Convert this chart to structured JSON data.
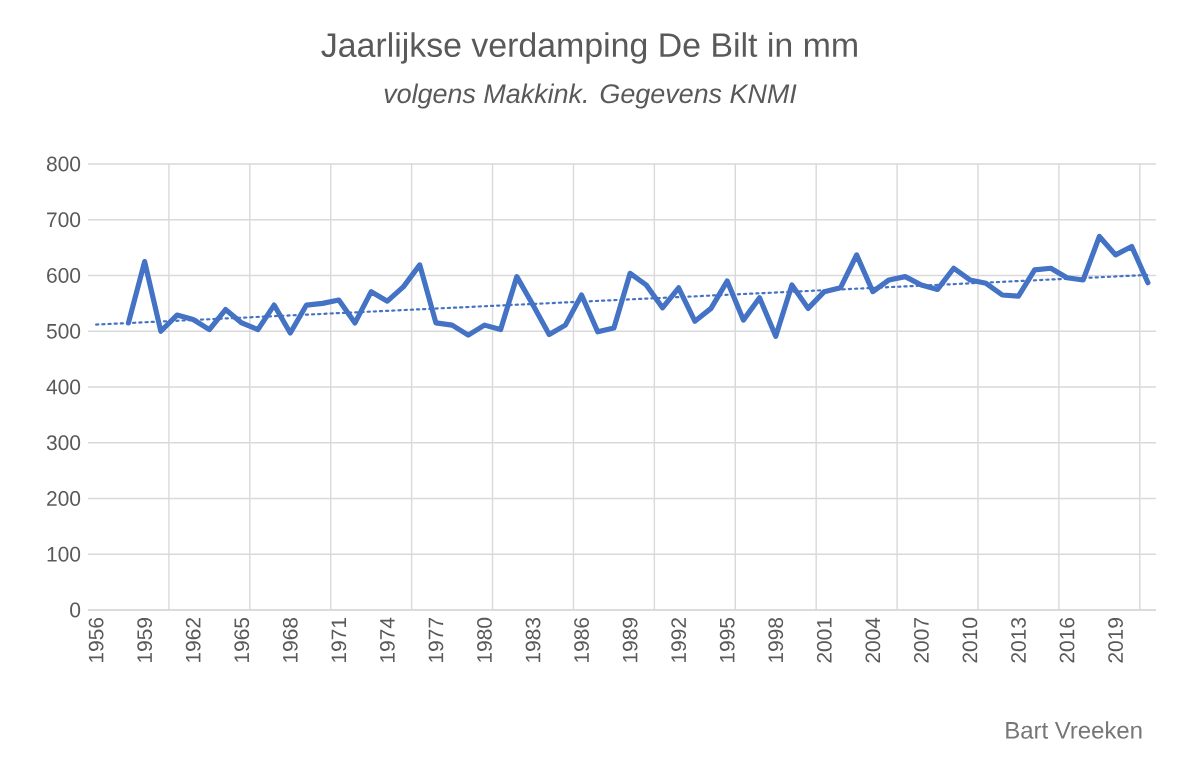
{
  "chart_data": {
    "type": "line",
    "title": "Jaarlijkse verdamping De Bilt in mm",
    "subtitle": "volgens Makkink. Gegevens KNMI",
    "xlim": [
      1955.5,
      2021.5
    ],
    "ylim": [
      0,
      800
    ],
    "xticks": [
      1956,
      1959,
      1962,
      1965,
      1968,
      1971,
      1974,
      1977,
      1980,
      1983,
      1986,
      1989,
      1992,
      1995,
      1998,
      2001,
      2004,
      2007,
      2010,
      2013,
      2016,
      2019,
      {
        "value": 1960.5,
        "label": null
      },
      {
        "value": 1965.5,
        "label": null
      },
      {
        "value": 1970.5,
        "label": null
      },
      {
        "value": 1975.5,
        "label": null
      },
      {
        "value": 1980.5,
        "label": null
      },
      {
        "value": 1985.5,
        "label": null
      },
      {
        "value": 1990.5,
        "label": null
      },
      {
        "value": 1995.5,
        "label": null
      },
      {
        "value": 2000.5,
        "label": null
      },
      {
        "value": 2005.5,
        "label": null
      },
      {
        "value": 2010.5,
        "label": null
      },
      {
        "value": 2015.5,
        "label": null
      },
      {
        "value": 2020.5,
        "label": null
      }
    ],
    "yticks": [
      0,
      100,
      200,
      300,
      400,
      500,
      600,
      700,
      800
    ],
    "grid": true,
    "series": [
      {
        "color": "#4472c4",
        "line_style": "solid",
        "x": [
          1958,
          1959,
          1960,
          1961,
          1962,
          1963,
          1964,
          1965,
          1966,
          1967,
          1968,
          1969,
          1970,
          1971,
          1972,
          1973,
          1974,
          1975,
          1976,
          1977,
          1978,
          1979,
          1980,
          1981,
          1982,
          1983,
          1984,
          1985,
          1986,
          1987,
          1988,
          1989,
          1990,
          1991,
          1992,
          1993,
          1994,
          1995,
          1996,
          1997,
          1998,
          1999,
          2000,
          2001,
          2002,
          2003,
          2004,
          2005,
          2006,
          2007,
          2008,
          2009,
          2010,
          2011,
          2012,
          2013,
          2014,
          2015,
          2016,
          2017,
          2018,
          2019,
          2020,
          2021
        ],
        "values": [
          515,
          625,
          500,
          529,
          521,
          503,
          539,
          515,
          503,
          547,
          497,
          547,
          550,
          556,
          515,
          571,
          554,
          580,
          619,
          515,
          511,
          493,
          511,
          503,
          598,
          547,
          494,
          511,
          565,
          499,
          506,
          604,
          583,
          542,
          578,
          518,
          541,
          590,
          520,
          560,
          491,
          583,
          541,
          571,
          578,
          637,
          571,
          592,
          598,
          583,
          575,
          613,
          592,
          586,
          565,
          563,
          610,
          613,
          596,
          592,
          670,
          637,
          652,
          587
        ]
      },
      {
        "type": "line",
        "color": "#4472c4",
        "line_style": "dotted",
        "x": [
          1956,
          2021
        ],
        "values": [
          512,
          601
        ]
      }
    ],
    "annotations": [
      "Bart Vreeken"
    ]
  }
}
